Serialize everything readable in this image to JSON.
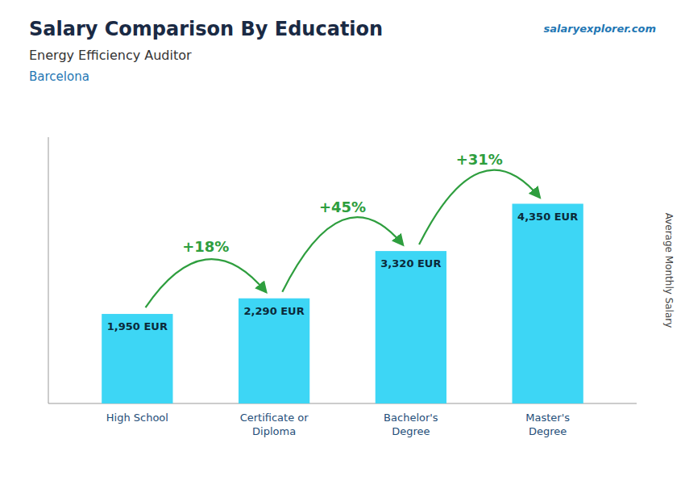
{
  "chart_data": {
    "type": "bar",
    "title": "Salary Comparison By Education",
    "subtitle": "Energy Efficiency Auditor",
    "annotations": [
      {
        "text": "Barcelona"
      },
      {
        "text": "salaryexplorer.com"
      },
      {
        "text": "+18%"
      },
      {
        "text": "+45%"
      },
      {
        "text": "+31%"
      }
    ],
    "categories": [
      "High School",
      "Certificate or\nDiploma",
      "Bachelor's\nDegree",
      "Master's\nDegree"
    ],
    "values": [
      1950,
      2290,
      3320,
      4350
    ],
    "value_labels": [
      "1,950 EUR",
      "2,290 EUR",
      "3,320 EUR",
      "4,350 EUR"
    ],
    "data_labels": true,
    "color": "#3dd6f5",
    "ylabel": "Average Monthly Salary",
    "ylim": [
      0,
      5800
    ],
    "yticks": [],
    "tick_labels": "x",
    "grid": false
  }
}
